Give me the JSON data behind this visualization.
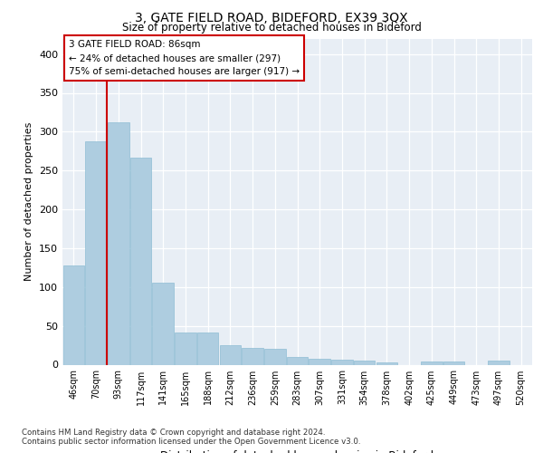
{
  "title1": "3, GATE FIELD ROAD, BIDEFORD, EX39 3QX",
  "title2": "Size of property relative to detached houses in Bideford",
  "xlabel": "Distribution of detached houses by size in Bideford",
  "ylabel": "Number of detached properties",
  "categories": [
    "46sqm",
    "70sqm",
    "93sqm",
    "117sqm",
    "141sqm",
    "165sqm",
    "188sqm",
    "212sqm",
    "236sqm",
    "259sqm",
    "283sqm",
    "307sqm",
    "331sqm",
    "354sqm",
    "378sqm",
    "402sqm",
    "425sqm",
    "449sqm",
    "473sqm",
    "497sqm",
    "520sqm"
  ],
  "values": [
    128,
    288,
    312,
    267,
    106,
    42,
    42,
    25,
    22,
    21,
    10,
    8,
    7,
    5,
    3,
    0,
    4,
    4,
    0,
    5,
    0
  ],
  "bar_color": "#aecde0",
  "bar_edge_color": "#8fbdd4",
  "vline_x": 1.5,
  "vline_color": "#cc0000",
  "annotation_text": "3 GATE FIELD ROAD: 86sqm\n← 24% of detached houses are smaller (297)\n75% of semi-detached houses are larger (917) →",
  "annotation_box_color": "#ffffff",
  "annotation_box_edge": "#cc0000",
  "ylim": [
    0,
    420
  ],
  "yticks": [
    0,
    50,
    100,
    150,
    200,
    250,
    300,
    350,
    400
  ],
  "footer1": "Contains HM Land Registry data © Crown copyright and database right 2024.",
  "footer2": "Contains public sector information licensed under the Open Government Licence v3.0.",
  "plot_bg_color": "#e8eef5"
}
